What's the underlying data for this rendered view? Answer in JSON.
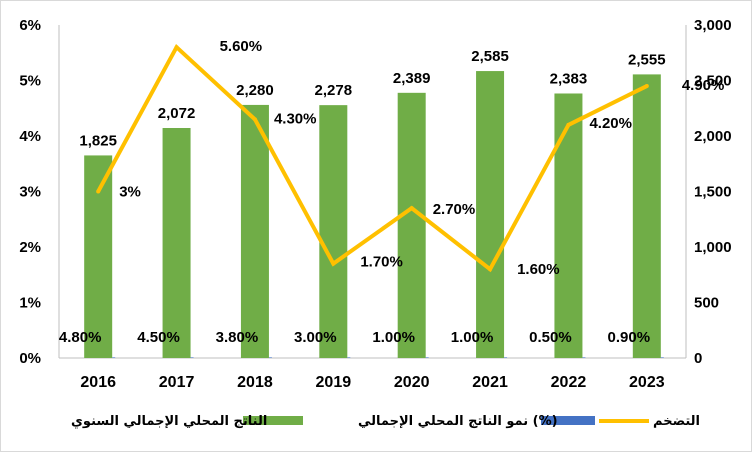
{
  "chart_data": {
    "type": "bar+line",
    "categories": [
      "2016",
      "2017",
      "2018",
      "2019",
      "2020",
      "2021",
      "2022",
      "2023"
    ],
    "bar_series": {
      "name": "الناتج المحلي الإجمالي السنوي",
      "values": [
        1825,
        2072,
        2280,
        2278,
        2389,
        2585,
        2383,
        2555
      ],
      "labels": [
        "1,825",
        "2,072",
        "2,280",
        "2,278",
        "2,389",
        "2,585",
        "2,383",
        "2,555"
      ],
      "axis": "right",
      "color": "#70ad47"
    },
    "growth_series": {
      "name": "نمو الناتج المحلي الإجمالي (%)",
      "values": [
        4.8,
        4.5,
        3.8,
        3.0,
        1.0,
        1.0,
        0.5,
        0.9
      ],
      "labels": [
        "4.80%",
        "4.50%",
        "3.80%",
        "3.00%",
        "1.00%",
        "1.00%",
        "0.50%",
        "0.90%"
      ],
      "color": "#4472c4"
    },
    "line_series": {
      "name": "التضخم",
      "values": [
        3.0,
        5.6,
        4.3,
        1.7,
        2.7,
        1.6,
        4.2,
        4.9
      ],
      "labels": [
        "3%",
        "5.60%",
        "4.30%",
        "1.70%",
        "2.70%",
        "1.60%",
        "4.20%",
        "4.90%"
      ],
      "axis": "left",
      "color": "#ffc000"
    },
    "left_axis": {
      "ylim": [
        0,
        6
      ],
      "ticks": [
        0,
        1,
        2,
        3,
        4,
        5,
        6
      ],
      "tick_labels": [
        "0%",
        "1%",
        "2%",
        "3%",
        "4%",
        "5%",
        "6%"
      ]
    },
    "right_axis": {
      "ylim": [
        0,
        3000
      ],
      "ticks": [
        0,
        500,
        1000,
        1500,
        2000,
        2500,
        3000
      ],
      "tick_labels": [
        "0",
        "500",
        "1,000",
        "1,500",
        "2,000",
        "2,500",
        "3,000"
      ]
    },
    "legend_position": "bottom",
    "grid": false
  }
}
